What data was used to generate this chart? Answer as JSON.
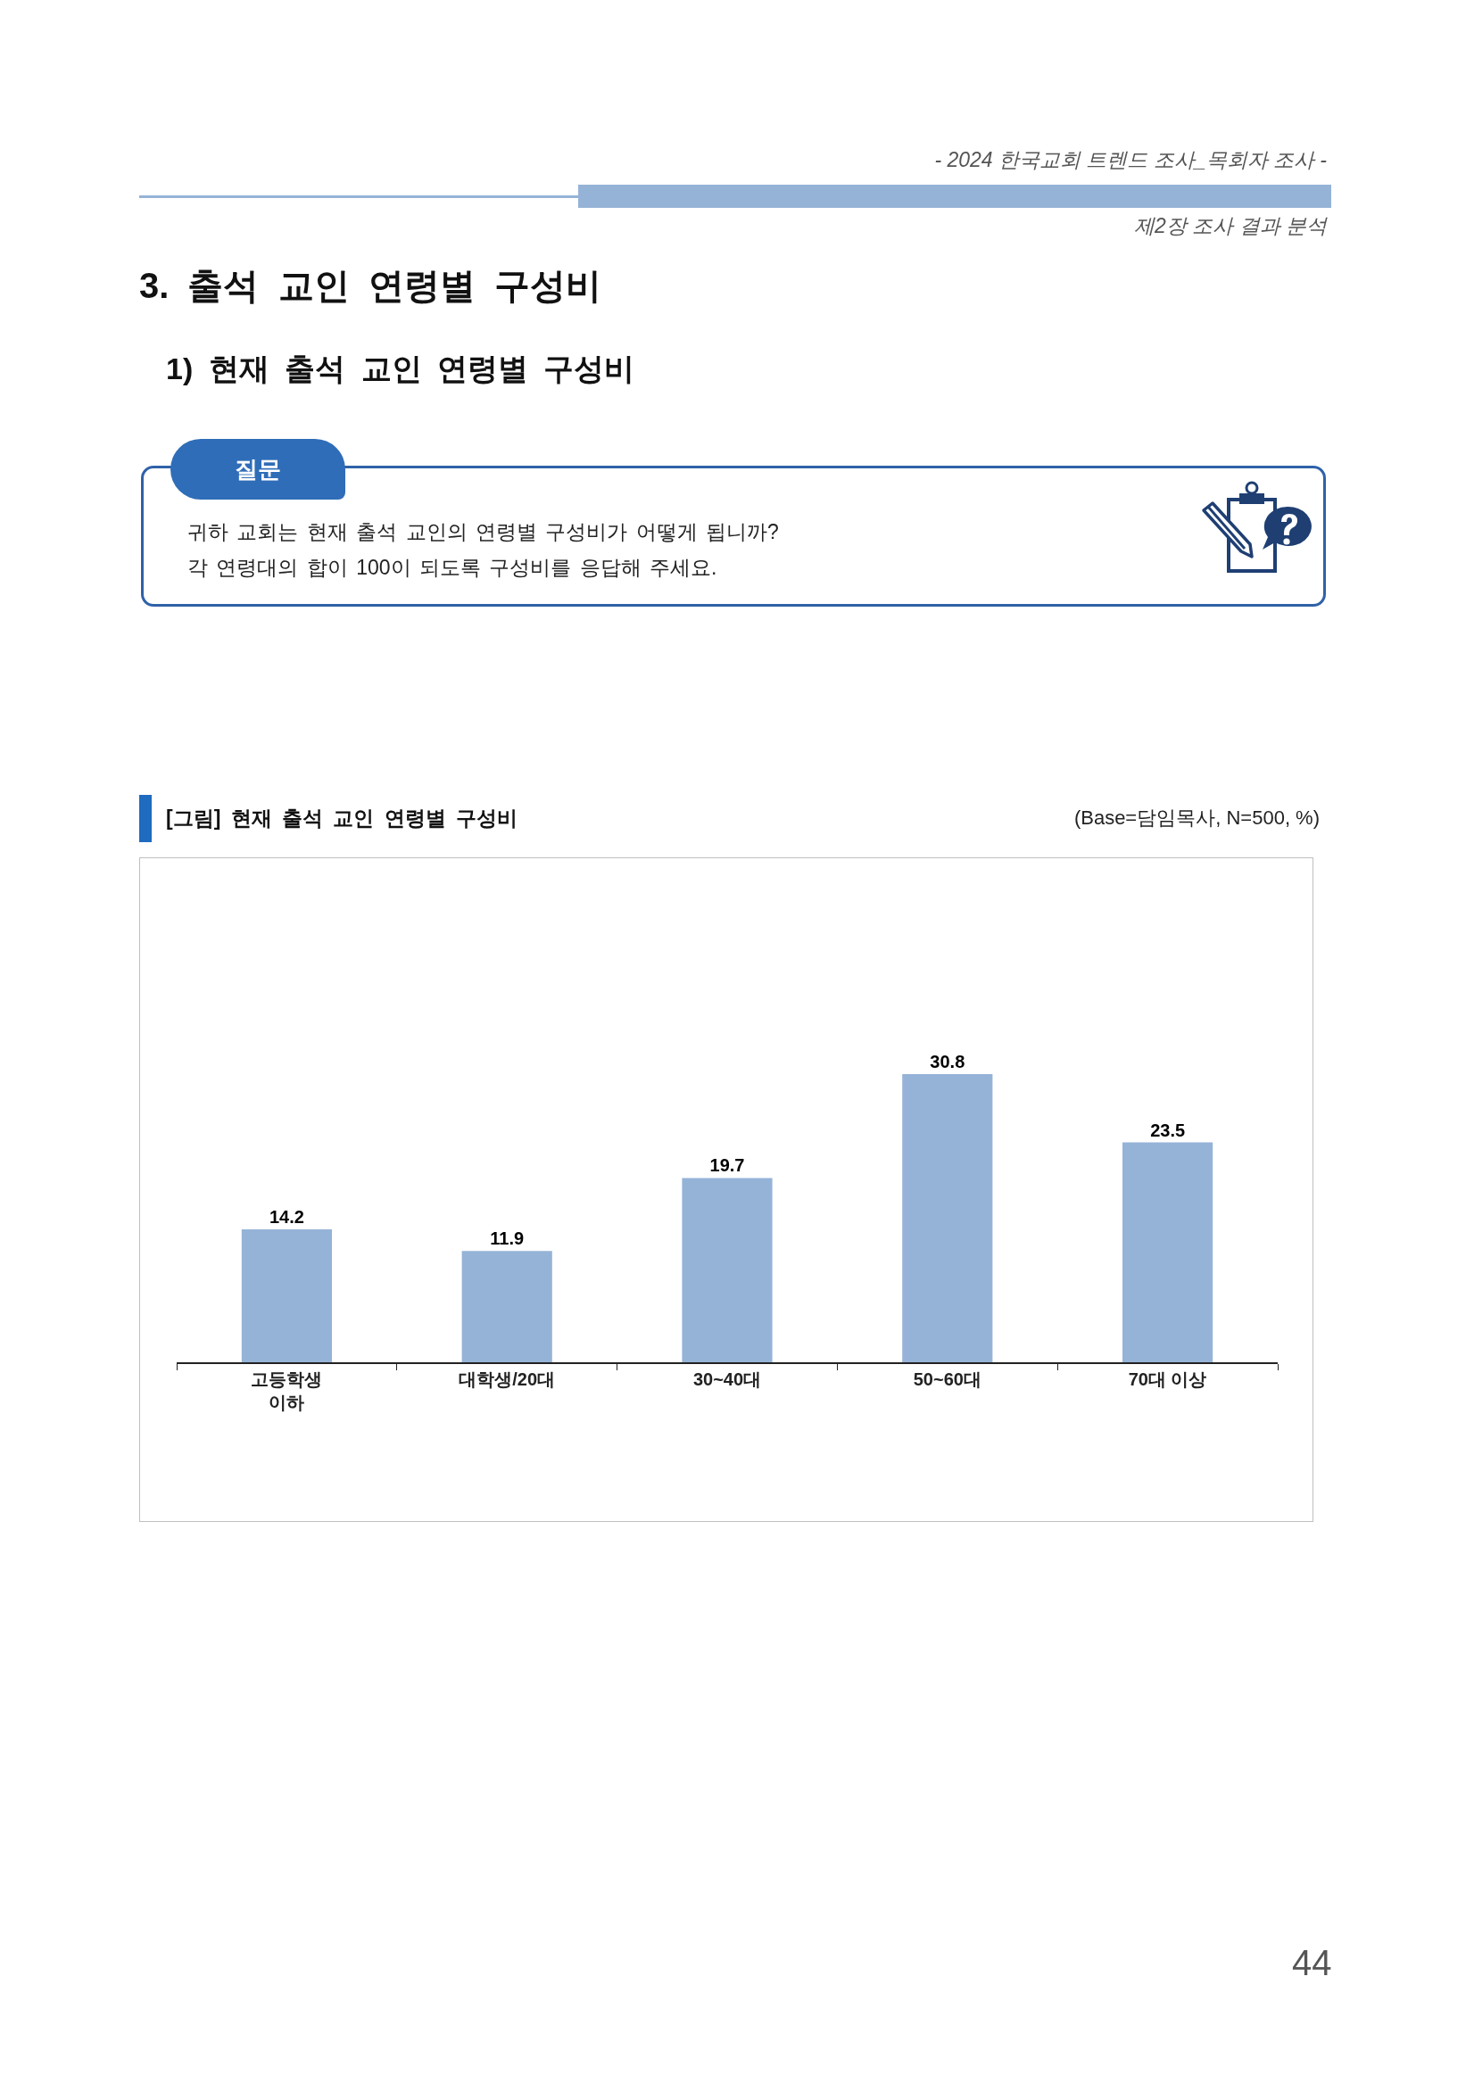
{
  "chart_data": {
    "type": "bar",
    "title": "[그림] 현재 출석 교인 연령별 구성비",
    "subtitle": "(Base=담임목사, N=500, %)",
    "annotations": [
      "- 2024 한국교회 트렌드 조사_목회자 조사 -",
      "제2장 조사 결과 분석",
      "3. 출석 교인 연령별 구성비",
      "1) 현재 출석 교인 연령별 구성비",
      "질문",
      "귀하 교회는 현재 출석 교인의 연령별 구성비가 어떻게 됩니까?",
      "각 연령대의 합이 100이 되도록 구성비를 응답해 주세요.",
      "44"
    ],
    "categories": [
      "고등학생\n이하",
      "대학생/20대",
      "30~40대",
      "50~60대",
      "70대 이상"
    ],
    "values": [
      14.2,
      11.9,
      19.7,
      30.8,
      23.5
    ],
    "color": "#95b3d7",
    "data_labels": true,
    "tick_labels": "x"
  }
}
